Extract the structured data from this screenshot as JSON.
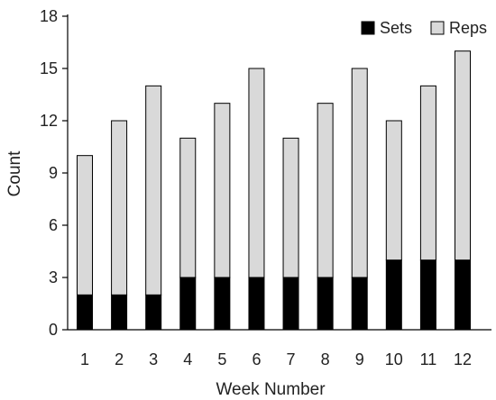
{
  "chart_data": {
    "type": "bar",
    "stacked": true,
    "title": "",
    "xlabel": "Week Number",
    "ylabel": "Count",
    "categories": [
      "1",
      "2",
      "3",
      "4",
      "5",
      "6",
      "7",
      "8",
      "9",
      "10",
      "11",
      "12"
    ],
    "ylim": [
      0,
      18
    ],
    "yticks": [
      0,
      3,
      6,
      9,
      12,
      15,
      18
    ],
    "grid": false,
    "legend_position": "top-right",
    "series": [
      {
        "name": "Sets",
        "color": "#000000",
        "values": [
          2,
          2,
          2,
          3,
          3,
          3,
          3,
          3,
          3,
          4,
          4,
          4
        ]
      },
      {
        "name": "Reps",
        "color": "#d9d9d9",
        "values": [
          8,
          10,
          12,
          8,
          10,
          12,
          8,
          10,
          12,
          8,
          10,
          12
        ]
      }
    ]
  }
}
